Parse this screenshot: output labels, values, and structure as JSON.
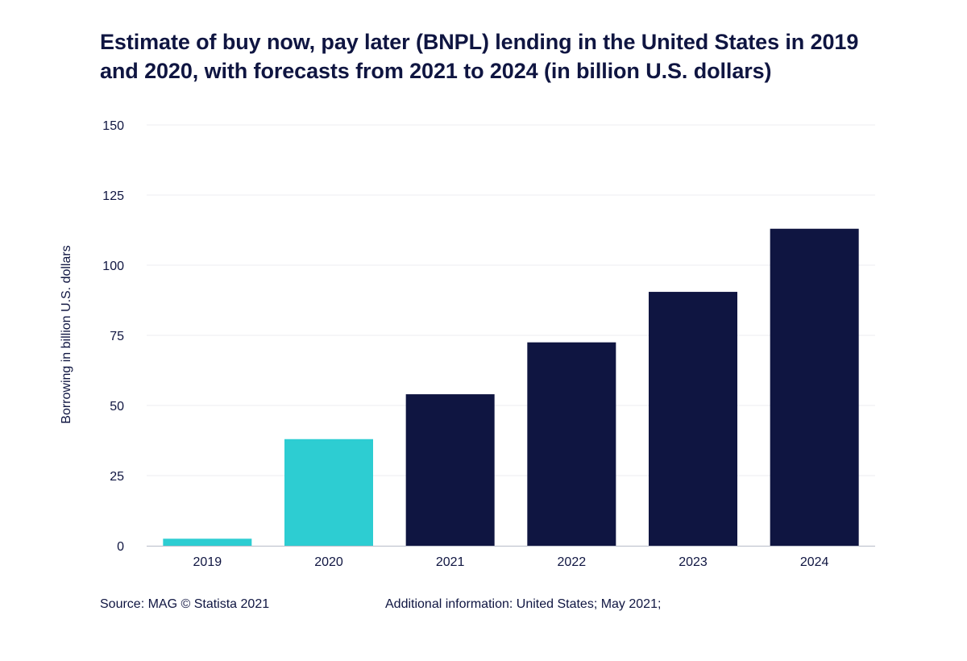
{
  "chart_data": {
    "type": "bar",
    "title": "Estimate of buy now, pay later (BNPL) lending in the United States in 2019 and 2020, with forecasts from 2021 to 2024 (in billion U.S. dollars)",
    "xlabel": "",
    "ylabel": "Borrowing in billion U.S. dollars",
    "categories": [
      "2019",
      "2020",
      "2021",
      "2022",
      "2023",
      "2024"
    ],
    "values": [
      2.5,
      38,
      54,
      72.5,
      90.5,
      113
    ],
    "bar_colors": [
      "#2dcdd2",
      "#2dcdd2",
      "#0f1541",
      "#0f1541",
      "#0f1541",
      "#0f1541"
    ],
    "ylim": [
      0,
      150
    ],
    "yticks": [
      0,
      25,
      50,
      75,
      100,
      125,
      150
    ],
    "grid": true,
    "legend": "none"
  },
  "footer": {
    "source": "Source: MAG © Statista 2021",
    "additional_info": "Additional information: United States; May 2021;"
  },
  "colors": {
    "text": "#0f1541",
    "grid": "#ececf0",
    "axis": "#b8bcc8"
  }
}
